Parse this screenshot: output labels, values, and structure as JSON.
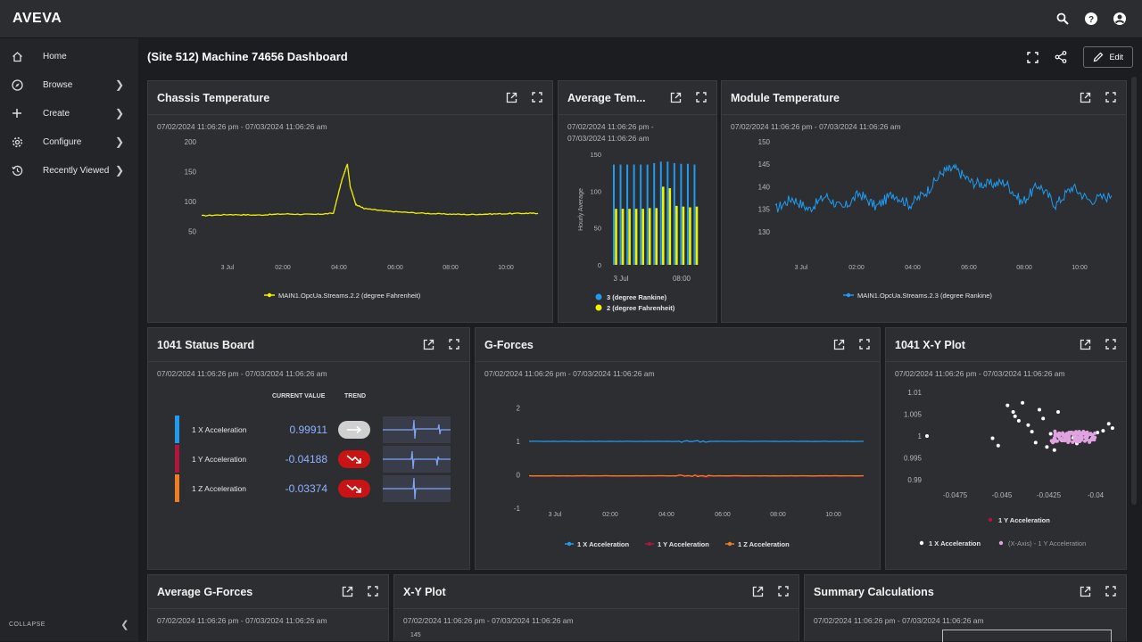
{
  "app": {
    "brand": "AVEVA"
  },
  "topbar": {
    "icons": [
      "search-icon",
      "help-icon",
      "account-icon"
    ]
  },
  "sidebar": {
    "items": [
      {
        "label": "Home",
        "icon": "home-icon",
        "has_submenu": false
      },
      {
        "label": "Browse",
        "icon": "compass-icon",
        "has_submenu": true
      },
      {
        "label": "Create",
        "icon": "plus-icon",
        "has_submenu": true
      },
      {
        "label": "Configure",
        "icon": "gear-icon",
        "has_submenu": true
      },
      {
        "label": "Recently Viewed",
        "icon": "history-icon",
        "has_submenu": true
      }
    ],
    "collapse_label": "COLLAPSE"
  },
  "page": {
    "title": "(Site 512) Machine 74656 Dashboard",
    "edit_label": "Edit"
  },
  "colors": {
    "yellow": "#f2f200",
    "blue": "#1f9cf0",
    "orange": "#f07d1f",
    "crimson": "#b0163c",
    "pink": "#e0a3e0",
    "red_badge": "#c81414"
  },
  "cards": {
    "chassis": {
      "title": "Chassis Temperature",
      "range": "07/02/2024 11:06:26 pm - 07/03/2024 11:06:26 am",
      "chart_data": {
        "type": "line",
        "yticks": [
          "200",
          "150",
          "100",
          "50"
        ],
        "ylim": [
          25,
          200
        ],
        "xticks": [
          "3 Jul",
          "02:00",
          "04:00",
          "06:00",
          "08:00",
          "10:00"
        ],
        "xlim_hours": [
          0,
          12
        ],
        "series": [
          {
            "name": "MAIN1.OpcUa.Streams.2.2 (degree Fahrenheit)",
            "color": "#f2f200",
            "x": [
              0,
              1,
              2,
              3,
              4,
              4.7,
              5.0,
              5.2,
              5.3,
              5.5,
              5.8,
              6.5,
              7.5,
              8.5,
              9.5,
              10.5,
              11.5,
              12
            ],
            "y": [
              76,
              78,
              77,
              79,
              78,
              80,
              135,
              163,
              125,
              95,
              88,
              84,
              81,
              79,
              78,
              79,
              80,
              80
            ]
          }
        ]
      }
    },
    "avgtemp": {
      "title": "Average Tem...",
      "range_line1": "07/02/2024 11:06:26 pm -",
      "range_line2": "07/03/2024 11:06:26 am",
      "chart_data": {
        "type": "bar",
        "ylabel": "Hourly Average",
        "yticks": [
          "150",
          "100",
          "50",
          "0"
        ],
        "ylim": [
          0,
          150
        ],
        "xticks": [
          "3 Jul",
          "08:00"
        ],
        "series": [
          {
            "name": "3 (degree Rankine)",
            "color": "#1f9cf0",
            "values": [
              136,
              136,
              136,
              136,
              136,
              136,
              138,
              140,
              140,
              138,
              137,
              137,
              136
            ]
          },
          {
            "name": "2 (degree Fahrenheit)",
            "color": "#f2f200",
            "values": [
              76,
              76,
              76,
              76,
              76,
              77,
              77,
              106,
              104,
              80,
              79,
              78,
              79
            ]
          }
        ]
      }
    },
    "module": {
      "title": "Module Temperature",
      "range": "07/02/2024 11:06:26 pm - 07/03/2024 11:06:26 am",
      "chart_data": {
        "type": "line",
        "yticks": [
          "150",
          "145",
          "140",
          "135",
          "130"
        ],
        "ylim": [
          128,
          150
        ],
        "xticks": [
          "3 Jul",
          "02:00",
          "04:00",
          "06:00",
          "08:00",
          "10:00"
        ],
        "xlim_hours": [
          0,
          12
        ],
        "series": [
          {
            "name": "MAIN1.OpcUa.Streams.2.3 (degree Rankine)",
            "color": "#1f9cf0",
            "x": [
              0,
              0.6,
              1.2,
              1.8,
              2.4,
              3.0,
              3.6,
              4.2,
              4.8,
              5.4,
              6.0,
              6.4,
              7.0,
              7.6,
              8.2,
              8.8,
              9.4,
              10.0,
              10.6,
              11.2,
              12
            ],
            "y": [
              135,
              137.5,
              135,
              138,
              135,
              138.5,
              135.5,
              138.5,
              136,
              139,
              143.5,
              144,
              141,
              140.5,
              141,
              136.5,
              140.5,
              136,
              140,
              137,
              138
            ]
          }
        ]
      }
    },
    "status": {
      "title": "1041 Status Board",
      "range": "07/02/2024 11:06:26 pm - 07/03/2024 11:06:26 am",
      "col_current": "CURRENT VALUE",
      "col_trend": "TREND",
      "rows": [
        {
          "label": "1 X Acceleration",
          "value": "0.99911",
          "bar": "#1f9cf0",
          "trend": "flat"
        },
        {
          "label": "1 Y Acceleration",
          "value": "-0.04188",
          "bar": "#b0163c",
          "trend": "down"
        },
        {
          "label": "1 Z Acceleration",
          "value": "-0.03374",
          "bar": "#f07d1f",
          "trend": "down"
        }
      ]
    },
    "gforces": {
      "title": "G-Forces",
      "range": "07/02/2024 11:06:26 pm - 07/03/2024 11:06:26 am",
      "chart_data": {
        "type": "line",
        "yticks": [
          "2",
          "1",
          "0",
          "-1"
        ],
        "ylim": [
          -1.5,
          2
        ],
        "xticks": [
          "3 Jul",
          "02:00",
          "04:00",
          "06:00",
          "08:00",
          "10:00"
        ],
        "series": [
          {
            "name": "1 X Acceleration",
            "color": "#1f9cf0",
            "value": 1
          },
          {
            "name": "1 Y Acceleration",
            "color": "#b0163c",
            "value": -0.04
          },
          {
            "name": "1 Z Acceleration",
            "color": "#f07d1f",
            "value": -0.03
          }
        ]
      }
    },
    "xy1041": {
      "title": "1041 X-Y Plot",
      "range": "07/02/2024 11:06:26 pm - 07/03/2024 11:06:26 am",
      "chart_data": {
        "type": "scatter",
        "yticks": [
          "1.01",
          "1.005",
          "1",
          "0.995",
          "0.99"
        ],
        "ylim": [
          0.989,
          1.011
        ],
        "xticks": [
          "-0.0475",
          "-0.045",
          "-0.0425",
          "-0.04"
        ],
        "xlim": [
          -0.049,
          -0.039
        ],
        "legend_top": "1 Y Acceleration",
        "legend_bottom": [
          "1 X Acceleration",
          "(X-Axis) - 1 Y Acceleration"
        ],
        "points": [
          [
            -0.049,
            1.0
          ],
          [
            -0.0455,
            0.9995
          ],
          [
            -0.0452,
            0.9978
          ],
          [
            -0.0447,
            1.007
          ],
          [
            -0.0444,
            1.0055
          ],
          [
            -0.0443,
            1.0045
          ],
          [
            -0.0441,
            1.0035
          ],
          [
            -0.0439,
            1.0076
          ],
          [
            -0.0436,
            1.0025
          ],
          [
            -0.0434,
            1.001
          ],
          [
            -0.0432,
            0.9985
          ],
          [
            -0.043,
            1.006
          ],
          [
            -0.0428,
            1.004
          ],
          [
            -0.0426,
            0.9975
          ],
          [
            -0.0424,
            1.0005
          ],
          [
            -0.0422,
            0.9968
          ],
          [
            -0.042,
            1.0055
          ],
          [
            -0.0418,
            0.999
          ],
          [
            -0.0415,
            1.0002
          ],
          [
            -0.0412,
            0.9996
          ],
          [
            -0.041,
            0.9983
          ],
          [
            -0.0405,
            1.0
          ],
          [
            -0.0402,
            0.9994
          ],
          [
            -0.0399,
            1.0008
          ],
          [
            -0.0396,
            1.0012
          ],
          [
            -0.0393,
            1.0028
          ],
          [
            -0.0391,
            1.0018
          ]
        ]
      }
    },
    "avgg": {
      "title": "Average G-Forces",
      "range": "07/02/2024 11:06:26 pm - 07/03/2024 11:06:26 am"
    },
    "xy": {
      "title": "X-Y Plot",
      "range": "07/02/2024 11:06:26 pm - 07/03/2024 11:06:26 am",
      "peek_tick": "145"
    },
    "summary": {
      "title": "Summary Calculations",
      "range": "07/02/2024 11:06:26 pm - 07/03/2024 11:06:26 am"
    }
  }
}
